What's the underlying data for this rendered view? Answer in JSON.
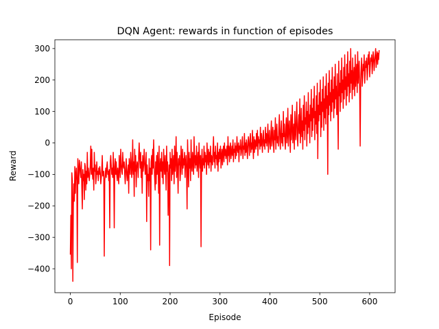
{
  "chart_data": {
    "type": "line",
    "title": "DQN Agent: rewards in function of episodes",
    "xlabel": "Episode",
    "ylabel": "Reward",
    "xlim": [
      -31,
      651
    ],
    "ylim": [
      -476,
      328
    ],
    "xticks": [
      0,
      100,
      200,
      300,
      400,
      500,
      600
    ],
    "yticks": [
      -400,
      -300,
      -200,
      -100,
      0,
      100,
      200,
      300
    ],
    "xtick_labels": [
      "0",
      "100",
      "200",
      "300",
      "400",
      "500",
      "600"
    ],
    "ytick_labels": [
      "−400",
      "−300",
      "−200",
      "−100",
      "0",
      "100",
      "200",
      "300"
    ],
    "grid": false,
    "legend": "none",
    "series": [
      {
        "color": "#ff0000",
        "x_start": 0,
        "x_step": 1,
        "values": [
          -355,
          -230,
          -400,
          -95,
          -120,
          -440,
          -200,
          -130,
          -185,
          -75,
          -160,
          -100,
          -80,
          -120,
          -380,
          -50,
          -90,
          -130,
          -55,
          -70,
          -95,
          -110,
          -60,
          -140,
          -210,
          -85,
          -120,
          -100,
          -180,
          -65,
          -75,
          -150,
          -90,
          -130,
          -30,
          -110,
          -80,
          -100,
          -120,
          -95,
          -70,
          -10,
          -100,
          -20,
          -95,
          -115,
          -80,
          -150,
          -30,
          -90,
          -70,
          -130,
          -110,
          -60,
          -100,
          -90,
          -120,
          -80,
          -100,
          -75,
          -95,
          -130,
          -110,
          -85,
          -40,
          -105,
          -100,
          -90,
          -360,
          -120,
          -100,
          -80,
          -110,
          -75,
          -60,
          -100,
          -90,
          -120,
          -85,
          -270,
          -60,
          -40,
          -70,
          -100,
          -80,
          -110,
          -30,
          -95,
          -270,
          -75,
          -50,
          -100,
          -60,
          -100,
          -120,
          -80,
          -100,
          -130,
          -40,
          -75,
          -110,
          -20,
          -65,
          -90,
          -100,
          -30,
          -70,
          -80,
          -60,
          -100,
          -130,
          -80,
          -50,
          -100,
          -120,
          -90,
          -70,
          -160,
          -50,
          -80,
          -100,
          -30,
          -60,
          -110,
          -80,
          10,
          -100,
          -60,
          -170,
          -20,
          -90,
          -40,
          -140,
          -80,
          -60,
          -70,
          -110,
          -40,
          0,
          -50,
          -80,
          -30,
          -110,
          -60,
          -160,
          -40,
          -90,
          -70,
          -20,
          -60,
          -100,
          -80,
          -30,
          -250,
          -70,
          -120,
          -100,
          -170,
          -50,
          -120,
          -80,
          -340,
          -60,
          -40,
          -100,
          -20,
          -80,
          10,
          -70,
          -110,
          -150,
          -60,
          -130,
          -40,
          -100,
          -30,
          -80,
          -160,
          -10,
          -325,
          -70,
          -50,
          -90,
          -30,
          -110,
          -60,
          -130,
          -20,
          -70,
          -100,
          -40,
          -80,
          -150,
          -10,
          -90,
          -60,
          -230,
          -110,
          -70,
          -390,
          -30,
          -80,
          -50,
          -120,
          -20,
          -100,
          -70,
          -40,
          -130,
          -10,
          -90,
          -60,
          20,
          -110,
          -30,
          -80,
          -160,
          -50,
          -70,
          -40,
          -120,
          -90,
          -10,
          -60,
          -100,
          -20,
          -80,
          -50,
          -70,
          -30,
          -110,
          -60,
          -40,
          -90,
          -210,
          10,
          -60,
          -140,
          -30,
          -80,
          -50,
          -120,
          10,
          -70,
          -90,
          -30,
          -60,
          -100,
          20,
          -50,
          -80,
          -40,
          -70,
          -10,
          -90,
          -60,
          -30,
          -110,
          0,
          -50,
          -80,
          -40,
          -330,
          -60,
          -20,
          -90,
          -50,
          -70,
          -10,
          -80,
          -30,
          -60,
          -40,
          -100,
          0,
          -50,
          -70,
          -20,
          -80,
          -30,
          -60,
          -10,
          -90,
          -40,
          -50,
          -70,
          -20,
          20,
          -60,
          -30,
          -80,
          -10,
          -50,
          -40,
          -70,
          0,
          -90,
          -30,
          -60,
          -20,
          -50,
          -10,
          -80,
          -40,
          -20,
          -70,
          -30,
          -10,
          -60,
          0,
          -40,
          -20,
          -50,
          -30,
          -10,
          -70,
          20,
          -40,
          -10,
          -60,
          -20,
          0,
          -50,
          -30,
          -10,
          -40,
          10,
          -60,
          -20,
          -30,
          0,
          -50,
          -10,
          -40,
          20,
          -20,
          -30,
          0,
          -60,
          -10,
          -20,
          10,
          -40,
          -30,
          0,
          20,
          -50,
          -10,
          -20,
          30,
          -40,
          0,
          -30,
          10,
          -20,
          -50,
          0,
          20,
          -10,
          -40,
          10,
          30,
          -30,
          0,
          -20,
          40,
          -10,
          -50,
          20,
          -30,
          10,
          0,
          -20,
          30,
          -10,
          40,
          -40,
          20,
          0,
          10,
          -20,
          50,
          -10,
          30,
          0,
          -30,
          20,
          40,
          -10,
          10,
          -20,
          50,
          0,
          30,
          -10,
          20,
          60,
          -30,
          10,
          40,
          0,
          -20,
          30,
          70,
          -10,
          20,
          50,
          0,
          -30,
          40,
          10,
          80,
          -20,
          30,
          60,
          0,
          20,
          -10,
          50,
          90,
          10,
          -20,
          40,
          70,
          0,
          30,
          -10,
          100,
          20,
          60,
          10,
          -20,
          50,
          80,
          0,
          30,
          110,
          -10,
          40,
          70,
          20,
          -30,
          90,
          10,
          50,
          120,
          0,
          30,
          60,
          -20,
          100,
          40,
          10,
          80,
          130,
          20,
          -10,
          60,
          90,
          30,
          140,
          0,
          50,
          110,
          20,
          70,
          -20,
          120,
          40,
          150,
          10,
          80,
          60,
          130,
          -10,
          100,
          30,
          160,
          50,
          90,
          0,
          120,
          70,
          170,
          20,
          110,
          40,
          140,
          80,
          180,
          10,
          100,
          60,
          150,
          30,
          190,
          -50,
          120,
          70,
          160,
          90,
          200,
          20,
          130,
          50,
          170,
          100,
          210,
          40,
          140,
          80,
          180,
          60,
          220,
          110,
          150,
          -100,
          190,
          90,
          230,
          120,
          160,
          70,
          200,
          100,
          240,
          130,
          170,
          80,
          210,
          110,
          250,
          140,
          180,
          90,
          220,
          120,
          -20,
          260,
          150,
          190,
          100,
          230,
          130,
          270,
          160,
          200,
          110,
          240,
          140,
          280,
          170,
          210,
          120,
          250,
          150,
          290,
          180,
          220,
          130,
          260,
          160,
          300,
          190,
          230,
          140,
          270,
          170,
          210,
          240,
          150,
          280,
          180,
          220,
          250,
          160,
          290,
          190,
          230,
          260,
          170,
          -10,
          200,
          240,
          270,
          180,
          210,
          250,
          230,
          280,
          190,
          220,
          260,
          240,
          270,
          200,
          230,
          280,
          250,
          290,
          210,
          240,
          270,
          260,
          280,
          220,
          250,
          290,
          270,
          230,
          260,
          280,
          300,
          240,
          270,
          290,
          250,
          285,
          265,
          295
        ]
      }
    ]
  }
}
